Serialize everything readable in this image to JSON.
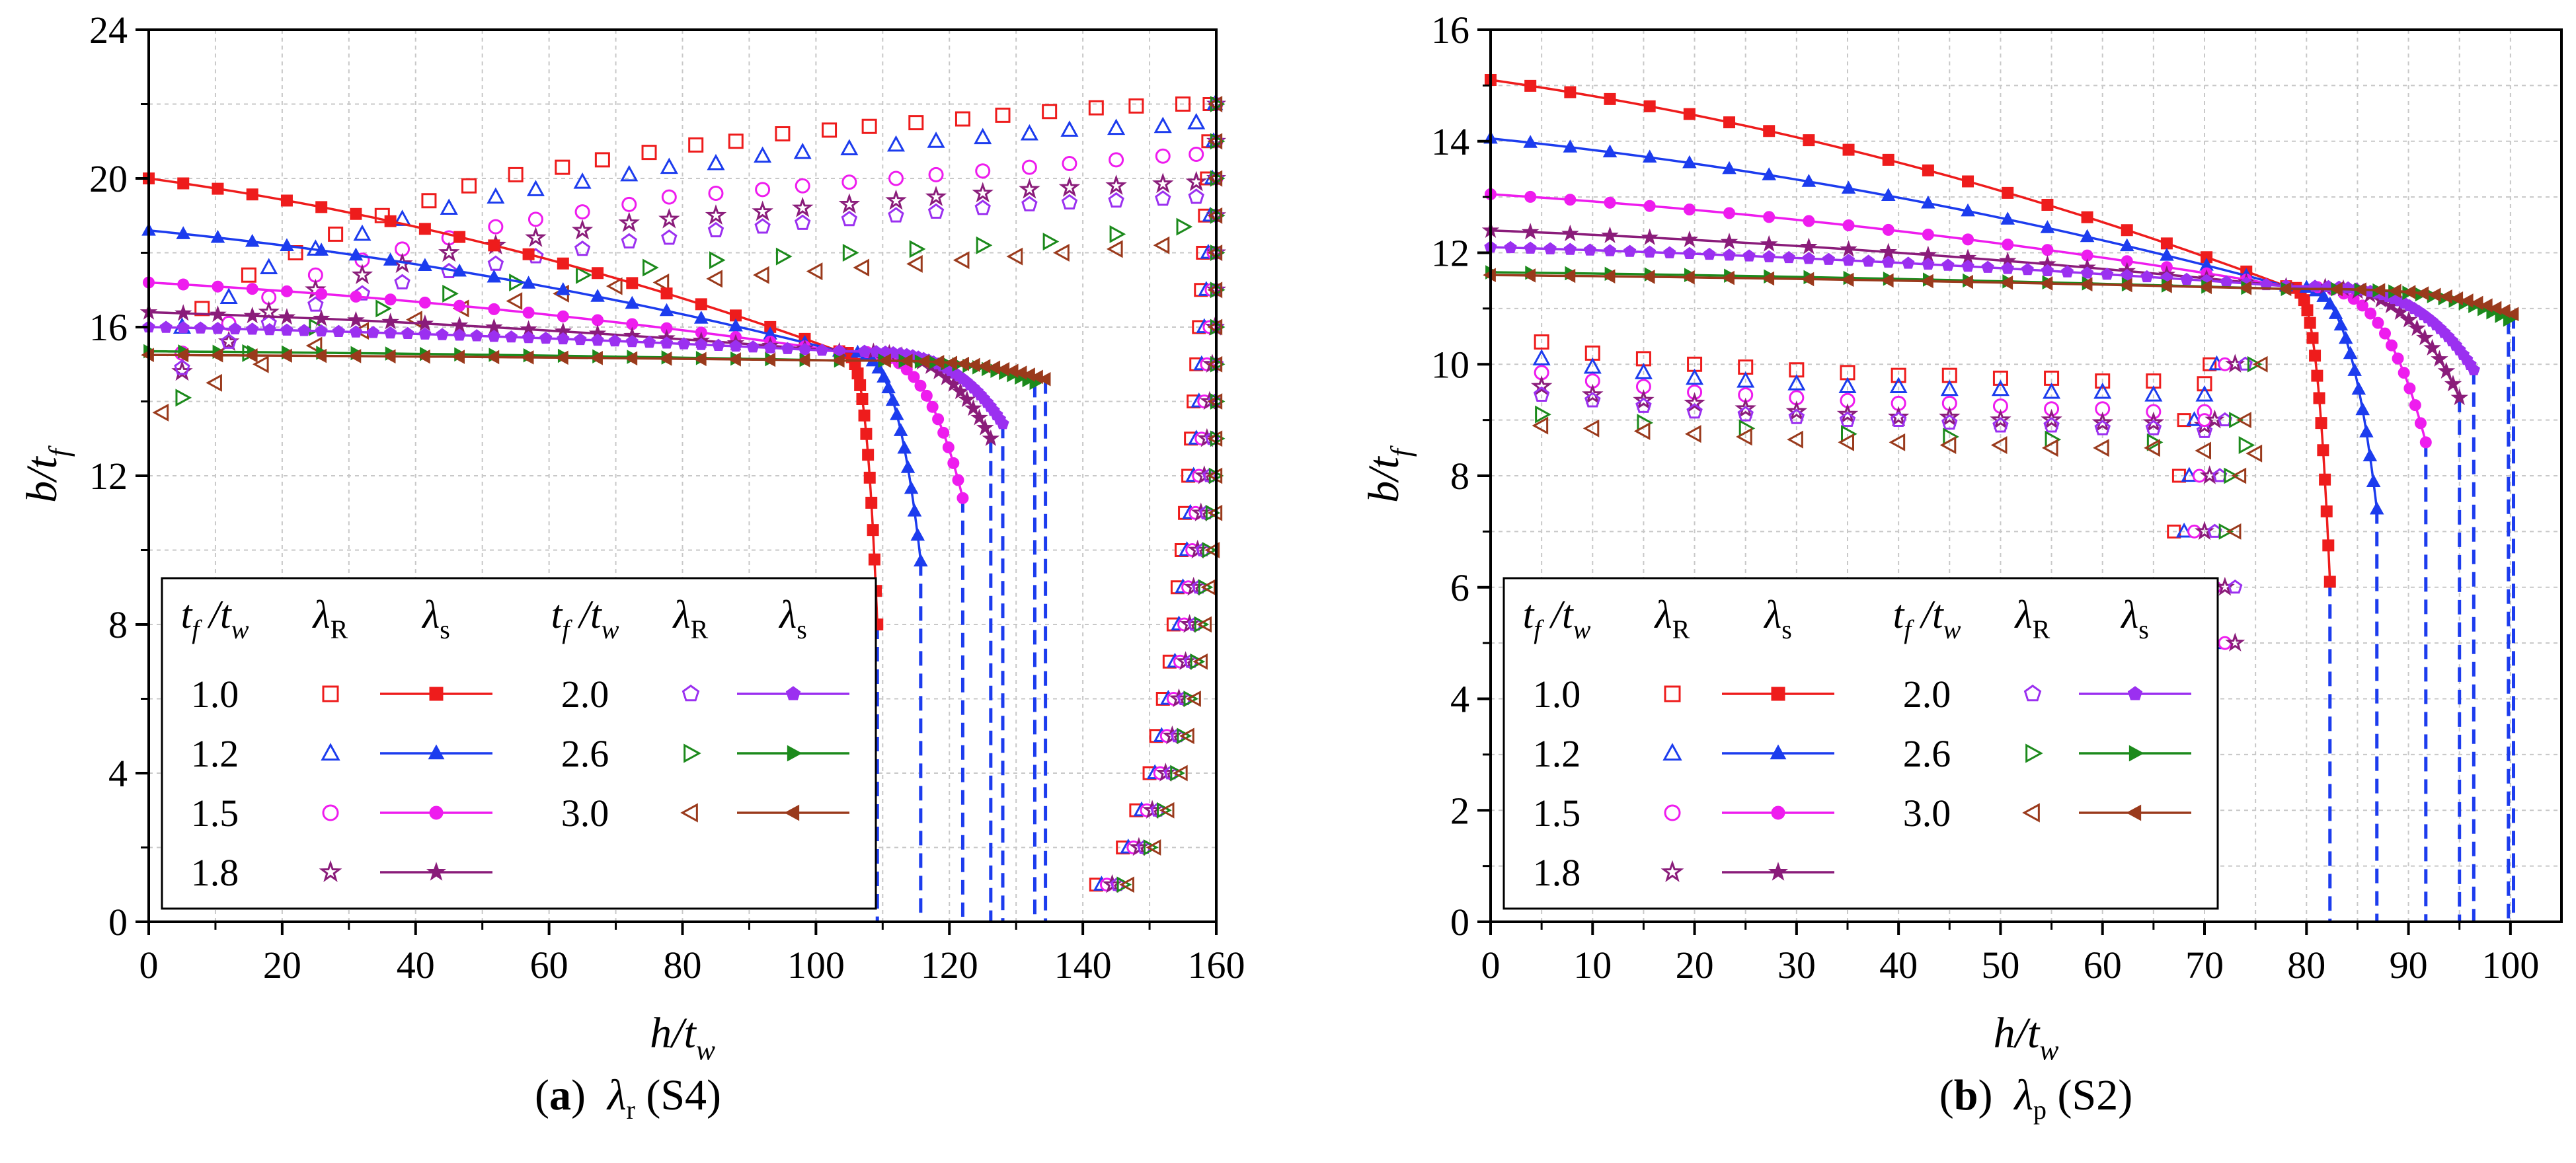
{
  "captions": [
    {
      "letter": "a",
      "symbol": "λ",
      "sub": "r",
      "label": "(S4)"
    },
    {
      "letter": "b",
      "symbol": "λ",
      "sub": "p",
      "label": "(S2)"
    }
  ],
  "legend_headers": {
    "ratio": "t",
    "ratio_sub1": "f",
    "ratio_mid": " /t",
    "ratio_sub2": "w",
    "r_sym": "λ",
    "r_sub": "R",
    "s_sym": "λ",
    "s_sub": "s"
  },
  "series_styles": [
    {
      "ratio": "1.0",
      "color": "#ee1c1c",
      "marker": "square"
    },
    {
      "ratio": "1.2",
      "color": "#1c3cee",
      "marker": "triangle-up"
    },
    {
      "ratio": "1.5",
      "color": "#ee1cee",
      "marker": "circle"
    },
    {
      "ratio": "1.8",
      "color": "#8a1c7a",
      "marker": "star"
    },
    {
      "ratio": "2.0",
      "color": "#9b30f0",
      "marker": "pentagon"
    },
    {
      "ratio": "2.6",
      "color": "#1c8a1c",
      "marker": "triangle-right"
    },
    {
      "ratio": "3.0",
      "color": "#9a3a1c",
      "marker": "triangle-left"
    }
  ],
  "chart_data": [
    {
      "type": "scatter",
      "panel": "a",
      "xlabel": "h/t_w",
      "ylabel": "b/t_f",
      "xlim": [
        0,
        160
      ],
      "ylim": [
        0,
        24
      ],
      "xticks": [
        0,
        20,
        40,
        60,
        80,
        100,
        120,
        140,
        160
      ],
      "yticks": [
        0,
        4,
        8,
        12,
        16,
        20,
        24
      ],
      "x_minor_step": 10,
      "y_minor_step": 2,
      "grid": true,
      "legend": "lower-left",
      "lambda_s": [
        {
          "ratio": "1.0",
          "y0": 20.0,
          "xc": 103.5,
          "yc": 15.35,
          "xend": 109.2,
          "yend": 8.0
        },
        {
          "ratio": "1.2",
          "y0": 18.6,
          "xc": 103.5,
          "yc": 15.35,
          "xend": 115.7,
          "yend": 9.7
        },
        {
          "ratio": "1.5",
          "y0": 17.2,
          "xc": 103.5,
          "yc": 15.35,
          "xend": 122.0,
          "yend": 11.4
        },
        {
          "ratio": "1.8",
          "y0": 16.4,
          "xc": 103.5,
          "yc": 15.35,
          "xend": 126.2,
          "yend": 13.0
        },
        {
          "ratio": "2.0",
          "y0": 16.0,
          "xc": 103.5,
          "yc": 15.35,
          "xend": 128.0,
          "yend": 13.4
        },
        {
          "ratio": "2.6",
          "y0": 15.35,
          "xc": 103.5,
          "yc": 15.1,
          "xend": 132.8,
          "yend": 14.5
        },
        {
          "ratio": "3.0",
          "y0": 15.25,
          "xc": 103.5,
          "yc": 15.1,
          "xend": 134.4,
          "yend": 14.6
        }
      ],
      "lambda_r": [
        {
          "ratio": "1.0",
          "x": [
            8,
            15,
            22,
            28,
            35,
            42,
            48,
            55,
            62,
            68,
            75,
            82,
            88,
            95,
            102,
            108,
            115,
            122,
            128,
            135,
            142,
            148,
            155
          ],
          "y": [
            16.5,
            17.4,
            18.0,
            18.5,
            19.0,
            19.4,
            19.8,
            20.1,
            20.3,
            20.5,
            20.7,
            20.9,
            21.0,
            21.2,
            21.3,
            21.4,
            21.5,
            21.6,
            21.7,
            21.8,
            21.9,
            21.95,
            22.0
          ]
        },
        {
          "ratio": "1.2",
          "x": [
            5,
            12,
            18,
            25,
            32,
            38,
            45,
            52,
            58,
            65,
            72,
            78,
            85,
            92,
            98,
            105,
            112,
            118,
            125,
            132,
            138,
            145,
            152,
            157
          ],
          "y": [
            16.0,
            16.8,
            17.6,
            18.1,
            18.5,
            18.9,
            19.2,
            19.5,
            19.7,
            19.9,
            20.1,
            20.3,
            20.4,
            20.6,
            20.7,
            20.8,
            20.9,
            21.0,
            21.1,
            21.2,
            21.3,
            21.35,
            21.4,
            21.5
          ]
        },
        {
          "ratio": "1.5",
          "x": [
            5,
            12,
            18,
            25,
            32,
            38,
            45,
            52,
            58,
            65,
            72,
            78,
            85,
            92,
            98,
            105,
            112,
            118,
            125,
            132,
            138,
            145,
            152,
            157
          ],
          "y": [
            15.3,
            16.1,
            16.8,
            17.4,
            17.8,
            18.1,
            18.4,
            18.7,
            18.9,
            19.1,
            19.3,
            19.5,
            19.6,
            19.7,
            19.8,
            19.9,
            20.0,
            20.1,
            20.2,
            20.3,
            20.4,
            20.5,
            20.6,
            20.65
          ]
        },
        {
          "ratio": "1.8",
          "x": [
            5,
            12,
            18,
            25,
            32,
            38,
            45,
            52,
            58,
            65,
            72,
            78,
            85,
            92,
            98,
            105,
            112,
            118,
            125,
            132,
            138,
            145,
            152,
            157
          ],
          "y": [
            14.8,
            15.6,
            16.4,
            17.0,
            17.4,
            17.7,
            18.0,
            18.2,
            18.4,
            18.6,
            18.8,
            18.9,
            19.0,
            19.1,
            19.2,
            19.3,
            19.4,
            19.5,
            19.6,
            19.7,
            19.75,
            19.8,
            19.85,
            19.9
          ]
        },
        {
          "ratio": "2.0",
          "x": [
            5,
            12,
            18,
            25,
            32,
            38,
            45,
            52,
            58,
            65,
            72,
            78,
            85,
            92,
            98,
            105,
            112,
            118,
            125,
            132,
            138,
            145,
            152,
            157
          ],
          "y": [
            14.9,
            15.6,
            16.1,
            16.6,
            16.9,
            17.2,
            17.5,
            17.7,
            17.9,
            18.1,
            18.3,
            18.4,
            18.6,
            18.7,
            18.8,
            18.9,
            19.0,
            19.1,
            19.2,
            19.3,
            19.35,
            19.4,
            19.45,
            19.5
          ]
        },
        {
          "ratio": "2.6",
          "x": [
            5,
            15,
            25,
            35,
            45,
            55,
            65,
            75,
            85,
            95,
            105,
            115,
            125,
            135,
            145,
            155
          ],
          "y": [
            14.1,
            15.3,
            16.0,
            16.5,
            16.9,
            17.2,
            17.4,
            17.6,
            17.8,
            17.9,
            18.0,
            18.1,
            18.2,
            18.3,
            18.5,
            18.7
          ]
        },
        {
          "ratio": "3.0",
          "x": [
            2,
            10,
            17,
            25,
            32,
            40,
            47,
            55,
            62,
            70,
            77,
            85,
            92,
            100,
            107,
            115,
            122,
            130,
            137,
            145,
            152
          ],
          "y": [
            13.7,
            14.5,
            15.0,
            15.5,
            15.9,
            16.2,
            16.5,
            16.7,
            16.9,
            17.1,
            17.2,
            17.3,
            17.4,
            17.5,
            17.6,
            17.7,
            17.8,
            17.9,
            18.0,
            18.1,
            18.2
          ]
        }
      ],
      "lambda_r_tail": {
        "y": [
          1,
          2,
          3,
          4,
          5,
          6,
          7,
          8,
          9,
          10,
          11,
          12,
          13,
          14,
          15,
          16,
          17,
          18,
          19,
          20,
          21,
          22
        ],
        "x_start": [
          142,
          146,
          148,
          150,
          151,
          152,
          153,
          153.6,
          154.2,
          154.8,
          155.3,
          155.8,
          156.2,
          156.6,
          157,
          157.4,
          157.7,
          158,
          158.3,
          158.6,
          158.8,
          159
        ],
        "ratio_offsets": [
          0,
          0.8,
          1.6,
          2.4,
          3.2,
          4.0,
          4.8
        ]
      },
      "dashed_lines": [
        {
          "x": 109.2,
          "y_top": 8.0
        },
        {
          "x": 115.7,
          "y_top": 9.7
        },
        {
          "x": 122.0,
          "y_top": 11.4
        },
        {
          "x": 126.2,
          "y_top": 13.0
        },
        {
          "x": 128.0,
          "y_top": 13.4
        },
        {
          "x": 132.8,
          "y_top": 14.5
        },
        {
          "x": 134.4,
          "y_top": 14.6
        }
      ]
    },
    {
      "type": "scatter",
      "panel": "b",
      "xlabel": "h/t_w",
      "ylabel": "b/t_f",
      "xlim": [
        0,
        105
      ],
      "ylim": [
        0,
        16
      ],
      "xticks": [
        0,
        10,
        20,
        30,
        40,
        50,
        60,
        70,
        80,
        90,
        100
      ],
      "yticks": [
        0,
        2,
        4,
        6,
        8,
        10,
        12,
        14,
        16
      ],
      "x_minor_step": 5,
      "y_minor_step": 1,
      "grid": true,
      "legend": "lower-left",
      "lambda_s": [
        {
          "ratio": "1.0",
          "y0": 15.1,
          "xc": 78.0,
          "yc": 11.4,
          "xend": 82.3,
          "yend": 6.1
        },
        {
          "ratio": "1.2",
          "y0": 14.05,
          "xc": 78.0,
          "yc": 11.4,
          "xend": 86.9,
          "yend": 7.4
        },
        {
          "ratio": "1.5",
          "y0": 13.05,
          "xc": 78.0,
          "yc": 11.4,
          "xend": 91.7,
          "yend": 8.6
        },
        {
          "ratio": "1.8",
          "y0": 12.4,
          "xc": 78.0,
          "yc": 11.4,
          "xend": 95.0,
          "yend": 9.4
        },
        {
          "ratio": "2.0",
          "y0": 12.1,
          "xc": 78.0,
          "yc": 11.4,
          "xend": 96.4,
          "yend": 9.9
        },
        {
          "ratio": "2.6",
          "y0": 11.65,
          "xc": 78.0,
          "yc": 11.35,
          "xend": 99.8,
          "yend": 10.8
        },
        {
          "ratio": "3.0",
          "y0": 11.6,
          "xc": 78.0,
          "yc": 11.35,
          "xend": 100.3,
          "yend": 10.9
        }
      ],
      "lambda_r": [
        {
          "ratio": "1.0",
          "x": [
            5,
            10,
            15,
            20,
            25,
            30,
            35,
            40,
            45,
            50,
            55,
            60,
            65,
            70
          ],
          "y": [
            10.4,
            10.2,
            10.1,
            10.0,
            9.95,
            9.9,
            9.85,
            9.8,
            9.8,
            9.75,
            9.75,
            9.7,
            9.7,
            9.65
          ]
        },
        {
          "ratio": "1.2",
          "x": [
            5,
            10,
            15,
            20,
            25,
            30,
            35,
            40,
            45,
            50,
            55,
            60,
            65,
            70
          ],
          "y": [
            10.1,
            9.95,
            9.85,
            9.75,
            9.7,
            9.65,
            9.6,
            9.6,
            9.55,
            9.55,
            9.5,
            9.5,
            9.45,
            9.45
          ]
        },
        {
          "ratio": "1.5",
          "x": [
            5,
            10,
            15,
            20,
            25,
            30,
            35,
            40,
            45,
            50,
            55,
            60,
            65,
            70
          ],
          "y": [
            9.85,
            9.7,
            9.6,
            9.5,
            9.45,
            9.4,
            9.35,
            9.3,
            9.3,
            9.25,
            9.2,
            9.2,
            9.15,
            9.15
          ]
        },
        {
          "ratio": "1.8",
          "x": [
            5,
            10,
            15,
            20,
            25,
            30,
            35,
            40,
            45,
            50,
            55,
            60,
            65,
            70
          ],
          "y": [
            9.6,
            9.45,
            9.35,
            9.3,
            9.2,
            9.15,
            9.1,
            9.05,
            9.05,
            9.0,
            9.0,
            8.95,
            8.95,
            8.9
          ]
        },
        {
          "ratio": "2.0",
          "x": [
            5,
            10,
            15,
            20,
            25,
            30,
            35,
            40,
            45,
            50,
            55,
            60,
            65,
            70
          ],
          "y": [
            9.45,
            9.35,
            9.25,
            9.15,
            9.1,
            9.05,
            9.0,
            9.0,
            8.95,
            8.9,
            8.9,
            8.85,
            8.85,
            8.8
          ]
        },
        {
          "ratio": "2.6",
          "x": [
            5,
            15,
            25,
            35,
            45,
            55,
            65,
            74
          ],
          "y": [
            9.1,
            8.95,
            8.85,
            8.75,
            8.7,
            8.65,
            8.6,
            8.55
          ]
        },
        {
          "ratio": "3.0",
          "x": [
            5,
            10,
            15,
            20,
            25,
            30,
            35,
            40,
            45,
            50,
            55,
            60,
            65,
            70,
            75
          ],
          "y": [
            8.9,
            8.85,
            8.8,
            8.75,
            8.7,
            8.65,
            8.6,
            8.6,
            8.55,
            8.55,
            8.5,
            8.5,
            8.5,
            8.45,
            8.4
          ]
        }
      ],
      "lambda_r_tail": {
        "points": [
          {
            "y": 10,
            "x": [
              70.5,
              71.2,
              72,
              73,
              74,
              74.8,
              75.6
            ]
          },
          {
            "y": 9,
            "x": [
              68,
              69,
              70,
              71,
              72,
              73,
              74
            ]
          },
          {
            "y": 8,
            "x": [
              67.5,
              68.5,
              69.5,
              70.5,
              71.5,
              72.5,
              73.5
            ]
          },
          {
            "y": 7,
            "x": [
              67,
              68,
              69,
              70,
              71,
              72,
              73
            ]
          },
          {
            "y": 6,
            "x": [
              69,
              70,
              71,
              72,
              73
            ]
          },
          {
            "y": 5,
            "x": [
              70,
              71,
              72,
              73
            ]
          }
        ]
      },
      "dashed_lines": [
        {
          "x": 82.3,
          "y_top": 6.1
        },
        {
          "x": 86.9,
          "y_top": 7.4
        },
        {
          "x": 91.7,
          "y_top": 8.6
        },
        {
          "x": 95.0,
          "y_top": 9.4
        },
        {
          "x": 96.4,
          "y_top": 9.9
        },
        {
          "x": 99.8,
          "y_top": 10.8
        },
        {
          "x": 100.3,
          "y_top": 10.9
        }
      ]
    }
  ]
}
